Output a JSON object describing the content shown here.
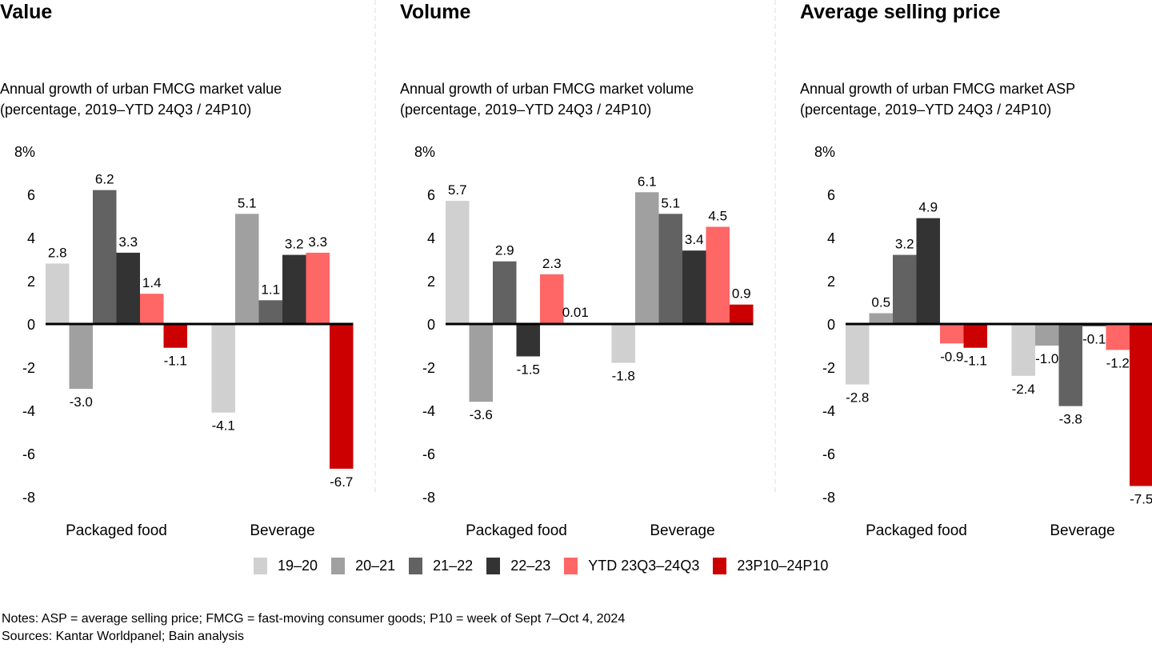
{
  "legend": [
    {
      "label": "19–20",
      "color": "#d0d0d0"
    },
    {
      "label": "20–21",
      "color": "#a0a0a0"
    },
    {
      "label": "21–22",
      "color": "#626262"
    },
    {
      "label": "22–23",
      "color": "#333333"
    },
    {
      "label": "YTD 23Q3–24Q3",
      "color": "#ff6666"
    },
    {
      "label": "23P10–24P10",
      "color": "#cc0000"
    }
  ],
  "footer": {
    "notes": "Notes: ASP = average selling price; FMCG = fast-moving consumer goods; P10 = week of Sept 7–Oct 4, 2024",
    "sources": "Sources: Kantar Worldpanel; Bain analysis"
  },
  "chart_data": [
    {
      "type": "bar",
      "title": "Value",
      "subtitle_line1": "Annual growth of urban FMCG market value",
      "subtitle_line2": "(percentage, 2019–YTD 24Q3 / 24P10)",
      "categories": [
        "Packaged food",
        "Beverage"
      ],
      "series": [
        {
          "name": "19–20",
          "values": [
            2.8,
            -4.1
          ],
          "labels": [
            "2.8",
            "-4.1"
          ]
        },
        {
          "name": "20–21",
          "values": [
            -3.0,
            5.1
          ],
          "labels": [
            "-3.0",
            "5.1"
          ]
        },
        {
          "name": "21–22",
          "values": [
            6.2,
            1.1
          ],
          "labels": [
            "6.2",
            "1.1"
          ]
        },
        {
          "name": "22–23",
          "values": [
            3.3,
            3.2
          ],
          "labels": [
            "3.3",
            "3.2"
          ]
        },
        {
          "name": "YTD 23Q3–24Q3",
          "values": [
            1.4,
            3.3
          ],
          "labels": [
            "1.4",
            "3.3"
          ]
        },
        {
          "name": "23P10–24P10",
          "values": [
            -1.1,
            -6.7
          ],
          "labels": [
            "-1.1",
            "-6.7"
          ]
        }
      ],
      "yticks": [
        "8%",
        "6",
        "4",
        "2",
        "0",
        "-2",
        "-4",
        "-6",
        "-8"
      ],
      "ylim": [
        -8,
        8
      ],
      "grid": false,
      "legend": "bottom"
    },
    {
      "type": "bar",
      "title": "Volume",
      "subtitle_line1": "Annual growth of urban FMCG market volume",
      "subtitle_line2": "(percentage, 2019–YTD 24Q3 / 24P10)",
      "categories": [
        "Packaged food",
        "Beverage"
      ],
      "series": [
        {
          "name": "19–20",
          "values": [
            5.7,
            -1.8
          ],
          "labels": [
            "5.7",
            "-1.8"
          ]
        },
        {
          "name": "20–21",
          "values": [
            -3.6,
            6.1
          ],
          "labels": [
            "-3.6",
            "6.1"
          ]
        },
        {
          "name": "21–22",
          "values": [
            2.9,
            5.1
          ],
          "labels": [
            "2.9",
            "5.1"
          ]
        },
        {
          "name": "22–23",
          "values": [
            -1.5,
            3.4
          ],
          "labels": [
            "-1.5",
            "3.4"
          ]
        },
        {
          "name": "YTD 23Q3–24Q3",
          "values": [
            2.3,
            4.5
          ],
          "labels": [
            "2.3",
            "4.5"
          ]
        },
        {
          "name": "23P10–24P10",
          "values": [
            0.01,
            0.9
          ],
          "labels": [
            "0.01",
            "0.9"
          ]
        }
      ],
      "yticks": [
        "8%",
        "6",
        "4",
        "2",
        "0",
        "-2",
        "-4",
        "-6",
        "-8"
      ],
      "ylim": [
        -8,
        8
      ],
      "grid": false,
      "legend": "bottom"
    },
    {
      "type": "bar",
      "title": "Average selling price",
      "subtitle_line1": "Annual growth of urban FMCG market ASP",
      "subtitle_line2": "(percentage, 2019–YTD 24Q3 / 24P10)",
      "categories": [
        "Packaged food",
        "Beverage"
      ],
      "series": [
        {
          "name": "19–20",
          "values": [
            -2.8,
            -2.4
          ],
          "labels": [
            "-2.8",
            "-2.4"
          ]
        },
        {
          "name": "20–21",
          "values": [
            0.5,
            -1.0
          ],
          "labels": [
            "0.5",
            "-1.0"
          ]
        },
        {
          "name": "21–22",
          "values": [
            3.2,
            -3.8
          ],
          "labels": [
            "3.2",
            "-3.8"
          ]
        },
        {
          "name": "22–23",
          "values": [
            4.9,
            -0.1
          ],
          "labels": [
            "4.9",
            "-0.1"
          ]
        },
        {
          "name": "YTD 23Q3–24Q3",
          "values": [
            -0.9,
            -1.2
          ],
          "labels": [
            "-0.9",
            "-1.2"
          ]
        },
        {
          "name": "23P10–24P10",
          "values": [
            -1.1,
            -7.5
          ],
          "labels": [
            "-1.1",
            "-7.5"
          ]
        }
      ],
      "yticks": [
        "8%",
        "6",
        "4",
        "2",
        "0",
        "-2",
        "-4",
        "-6",
        "-8"
      ],
      "ylim": [
        -8,
        8
      ],
      "grid": false,
      "legend": "bottom"
    }
  ]
}
